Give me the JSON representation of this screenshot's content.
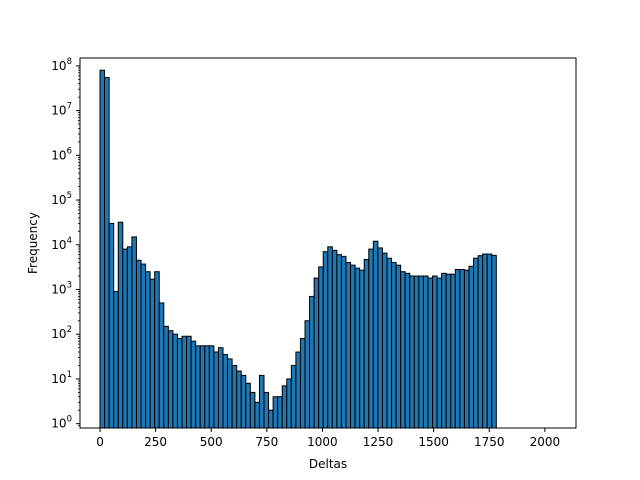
{
  "chart_data": {
    "type": "bar",
    "xlabel": "Deltas",
    "ylabel": "Frequency",
    "yscale": "log",
    "xlim": [
      -90,
      2140
    ],
    "ylim": [
      0.8,
      150000000
    ],
    "grid": false,
    "bar_color": "#1f77b4",
    "edge_color": "#000000",
    "bin_width": 20.48,
    "bins_start": 0,
    "xticks": [
      0,
      250,
      500,
      750,
      1000,
      1250,
      1500,
      1750,
      2000
    ],
    "xtick_labels": [
      "0",
      "250",
      "500",
      "750",
      "1000",
      "1250",
      "1500",
      "1750",
      "2000"
    ],
    "yticks": [
      1,
      10,
      100,
      1000,
      10000,
      100000,
      1000000,
      10000000,
      100000000
    ],
    "ytick_labels": [
      {
        "base": "10",
        "exp": "0"
      },
      {
        "base": "10",
        "exp": "1"
      },
      {
        "base": "10",
        "exp": "2"
      },
      {
        "base": "10",
        "exp": "3"
      },
      {
        "base": "10",
        "exp": "4"
      },
      {
        "base": "10",
        "exp": "5"
      },
      {
        "base": "10",
        "exp": "6"
      },
      {
        "base": "10",
        "exp": "7"
      },
      {
        "base": "10",
        "exp": "8"
      }
    ],
    "values": [
      80000000,
      55000000,
      30000,
      900,
      32000,
      8000,
      9000,
      15000,
      4500,
      3700,
      2500,
      1700,
      2500,
      500,
      150,
      120,
      100,
      80,
      90,
      90,
      70,
      55,
      55,
      55,
      55,
      40,
      50,
      35,
      28,
      20,
      15,
      12,
      8,
      5,
      3,
      12,
      5,
      2,
      4,
      4,
      7,
      10,
      20,
      40,
      80,
      200,
      700,
      1800,
      3200,
      7000,
      9000,
      7500,
      6000,
      5500,
      4000,
      3500,
      3000,
      2700,
      4700,
      8000,
      12000,
      8500,
      6500,
      5000,
      4000,
      3500,
      2500,
      2300,
      2000,
      2000,
      2000,
      2000,
      1800,
      2000,
      1800,
      2300,
      2200,
      2200,
      2800,
      2800,
      2700,
      3300,
      5000,
      5700,
      6200,
      6200,
      5800
    ]
  }
}
